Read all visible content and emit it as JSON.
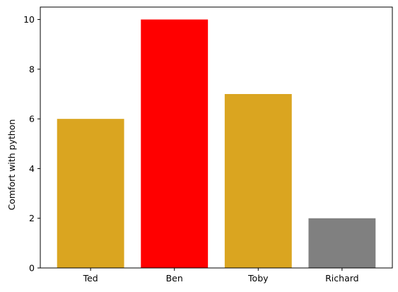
{
  "chart_data": {
    "type": "bar",
    "title": "",
    "xlabel": "",
    "ylabel": "Comfort with python",
    "categories": [
      "Ted",
      "Ben",
      "Toby",
      "Richard"
    ],
    "values": [
      6,
      10,
      7,
      2
    ],
    "bar_colors": [
      "#daa520",
      "#ff0000",
      "#daa520",
      "#808080"
    ],
    "ylim": [
      0,
      10.5
    ],
    "yticks": [
      0,
      2,
      4,
      6,
      8,
      10
    ],
    "grid": false,
    "legend": "none"
  }
}
